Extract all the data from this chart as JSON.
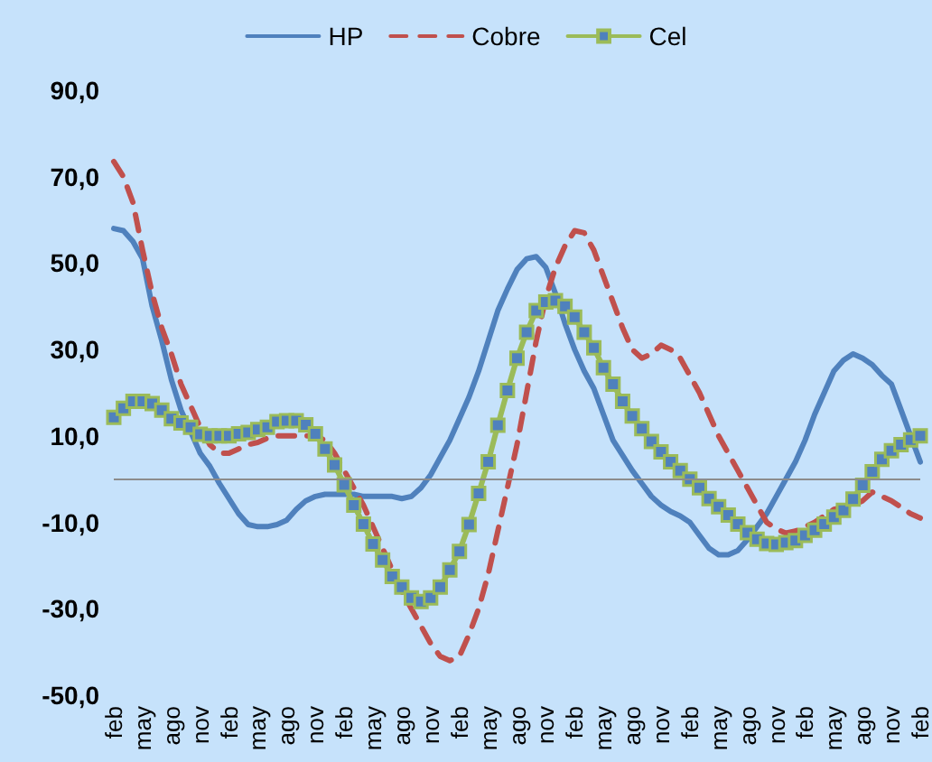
{
  "chart_data": {
    "type": "line",
    "categories": [
      "feb",
      null,
      null,
      "may",
      null,
      null,
      "ago",
      null,
      null,
      "nov",
      null,
      null,
      "feb",
      null,
      null,
      "may",
      null,
      null,
      "ago",
      null,
      null,
      "nov",
      null,
      null,
      "feb",
      null,
      null,
      "may",
      null,
      null,
      "ago",
      null,
      null,
      "nov",
      null,
      null,
      "feb",
      null,
      null,
      "may",
      null,
      null,
      "ago",
      null,
      null,
      "nov",
      null,
      null,
      "feb",
      null,
      null,
      "may",
      null,
      null,
      "ago",
      null,
      null,
      "nov",
      null,
      null,
      "feb",
      null,
      null,
      "may",
      null,
      null,
      "ago",
      null,
      null,
      "nov",
      null,
      null,
      "feb",
      null,
      null,
      "may",
      null,
      null,
      "ago",
      null,
      null,
      "nov",
      null,
      null,
      "feb"
    ],
    "series": [
      {
        "name": "HP",
        "color": "#4f81bd",
        "line_style": "solid",
        "marker": "none",
        "values": [
          58,
          57.5,
          55,
          51,
          40,
          32,
          23,
          16,
          11,
          6,
          3,
          -1,
          -4.5,
          -8,
          -10.5,
          -11,
          -11,
          -10.5,
          -9.5,
          -7,
          -5,
          -4,
          -3.5,
          -3.5,
          -3.5,
          -3.5,
          -4,
          -4,
          -4,
          -4,
          -4.5,
          -4,
          -2,
          1,
          5,
          9,
          14,
          19,
          25,
          32,
          39,
          44,
          48.5,
          51,
          51.5,
          49,
          43,
          36,
          30,
          25,
          21,
          15,
          9,
          5.5,
          2,
          -1,
          -4,
          -6,
          -7.5,
          -8.5,
          -10,
          -13,
          -16,
          -17.5,
          -17.5,
          -16.5,
          -14,
          -11,
          -8,
          -4,
          0,
          4,
          9,
          15,
          20,
          25,
          27.5,
          29,
          28,
          26.5,
          24,
          22,
          16,
          10,
          4
        ]
      },
      {
        "name": "Cobre",
        "color": "#c0504d",
        "line_style": "dashed",
        "marker": "none",
        "values": [
          73.5,
          70,
          64,
          53,
          43,
          35,
          29,
          22,
          17,
          12,
          8,
          6,
          6,
          7,
          8,
          8.5,
          9.5,
          10,
          10,
          10,
          10,
          10,
          9,
          6,
          2,
          -2,
          -6,
          -11,
          -16,
          -21,
          -26,
          -30,
          -34,
          -38,
          -41,
          -42,
          -41,
          -36,
          -30,
          -22,
          -12,
          -2,
          8,
          20,
          32,
          42,
          49,
          54,
          57.5,
          57,
          53,
          47,
          41,
          35,
          30,
          28,
          29,
          31,
          30,
          28,
          24,
          20,
          15,
          10,
          6,
          2,
          -2,
          -6,
          -10,
          -11.5,
          -12.5,
          -12,
          -11,
          -10,
          -8.5,
          -7,
          -6.5,
          -6,
          -5,
          -3,
          -4,
          -5,
          -6.5,
          -8,
          -9
        ]
      },
      {
        "name": "Cel",
        "color": "#9bbb59",
        "line_style": "solid",
        "marker": "square",
        "values": [
          14.3,
          16.4,
          18,
          18,
          17.5,
          16,
          14,
          13,
          12,
          10.4,
          10,
          10,
          10,
          10.5,
          10.8,
          11.5,
          12,
          13.3,
          13.5,
          13.5,
          12.6,
          10.5,
          7,
          3.3,
          -1.3,
          -6,
          -10.4,
          -15,
          -18.7,
          -22.5,
          -25,
          -27.5,
          -28.3,
          -27.5,
          -25,
          -21,
          -16.7,
          -10.5,
          -3.3,
          4,
          12.5,
          20.5,
          28,
          34,
          39,
          41,
          41.3,
          40,
          37.5,
          34,
          30.4,
          25.8,
          22,
          18,
          14.6,
          11.7,
          8.7,
          6.3,
          4,
          2,
          0,
          -2,
          -4.5,
          -6.4,
          -8.3,
          -10.4,
          -12.4,
          -13.9,
          -14.9,
          -15.1,
          -14.7,
          -14.2,
          -13,
          -11.8,
          -10.4,
          -8.8,
          -7.2,
          -4.6,
          -1.4,
          1.7,
          4.6,
          6.6,
          8,
          9.1,
          10
        ]
      }
    ],
    "ylim": [
      -50,
      90
    ],
    "yticks": [
      {
        "value": -50,
        "label": "-50,0"
      },
      {
        "value": -30,
        "label": "-30,0"
      },
      {
        "value": -10,
        "label": "-10,0"
      },
      {
        "value": 10,
        "label": "10,0"
      },
      {
        "value": 30,
        "label": "30,0"
      },
      {
        "value": 50,
        "label": "50,0"
      },
      {
        "value": 70,
        "label": "70,0"
      },
      {
        "value": 90,
        "label": "90,0"
      }
    ],
    "ref_lines": [
      {
        "axis": "y",
        "value": 0,
        "color": "#8c8c8c"
      }
    ],
    "grid": false,
    "legend": "top"
  }
}
